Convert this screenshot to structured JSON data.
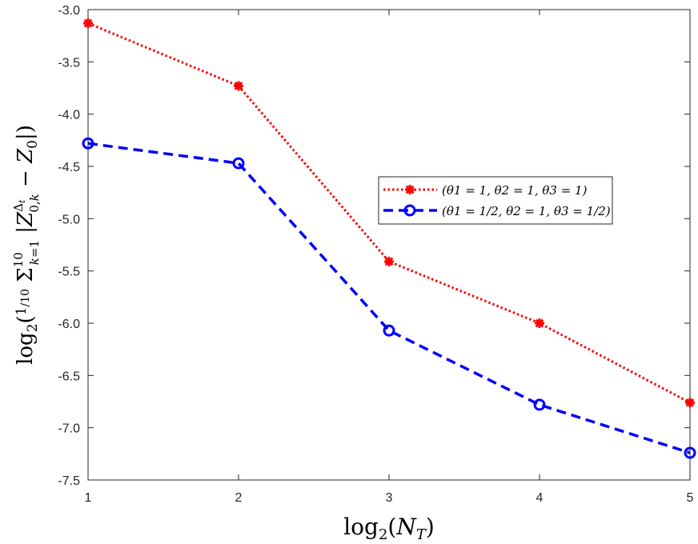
{
  "chart_data": {
    "type": "line",
    "title": "",
    "xlabel": "log2(N_T)",
    "ylabel": "log2( 1/10 Σ_{k=1}^{10} |Z_{0,k}^{Δt} − Z_0| )",
    "xlim": [
      1,
      5
    ],
    "ylim": [
      -7.5,
      -3.0
    ],
    "xticks": [
      "1",
      "2",
      "3",
      "4",
      "5"
    ],
    "yticks": [
      "-3.0",
      "-3.5",
      "-4.0",
      "-4.5",
      "-5.0",
      "-5.5",
      "-6.0",
      "-6.5",
      "-7.0",
      "-7.5"
    ],
    "grid": false,
    "legend_position": "center-right",
    "x": [
      1,
      2,
      3,
      4,
      5
    ],
    "series": [
      {
        "name": "(θ1 = 1, θ2 = 1, θ3 = 1)",
        "values": [
          -3.13,
          -3.73,
          -5.41,
          -6.0,
          -6.76
        ],
        "color": "#ff0000",
        "line_style": "dotted",
        "marker": "asterisk"
      },
      {
        "name": "(θ1 = 1/2, θ2 = 1, θ3 = 1/2)",
        "values": [
          -4.28,
          -4.47,
          -6.07,
          -6.78,
          -7.24
        ],
        "color": "#0000ff",
        "line_style": "dashed",
        "marker": "circle"
      }
    ]
  }
}
